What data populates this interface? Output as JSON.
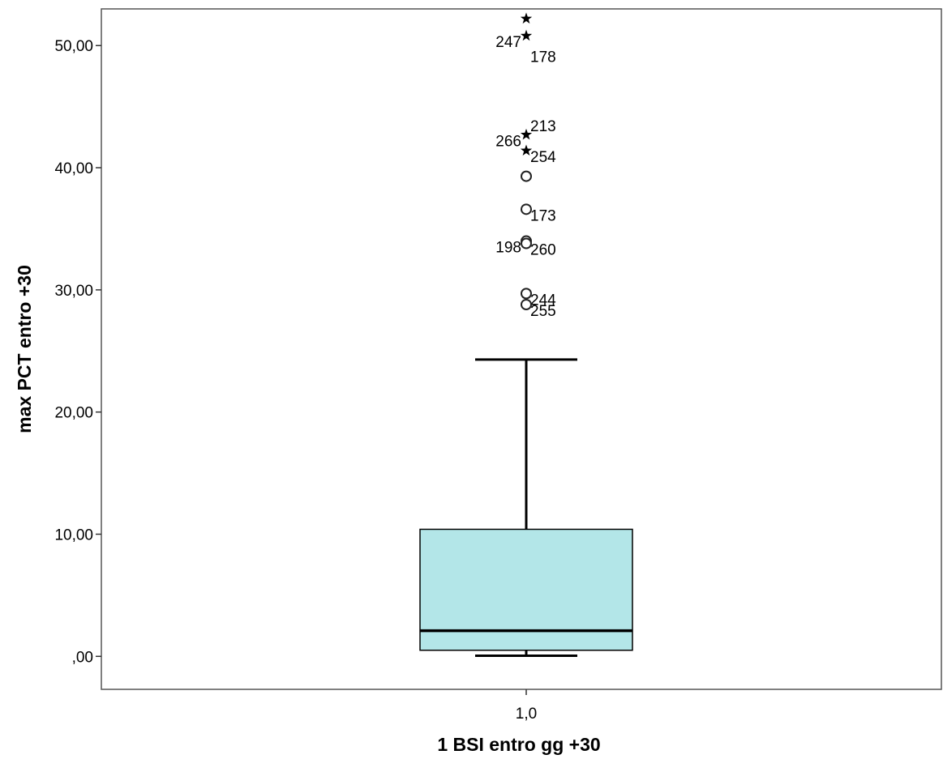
{
  "chart_data": {
    "type": "box",
    "xlabel": "1 BSI entro gg +30",
    "ylabel": "max PCT entro +30",
    "categories": [
      "1,0"
    ],
    "y_ticks": [
      {
        "value": 0,
        "label": ",00"
      },
      {
        "value": 10,
        "label": "10,00"
      },
      {
        "value": 20,
        "label": "20,00"
      },
      {
        "value": 30,
        "label": "30,00"
      },
      {
        "value": 40,
        "label": "40,00"
      },
      {
        "value": 50,
        "label": "50,00"
      }
    ],
    "ylim": [
      -2.7,
      53.0
    ],
    "grid": false,
    "box": {
      "box_color": "#b3e6e8",
      "whisker_low": 0.05,
      "q1": 0.5,
      "median": 2.1,
      "q3": 10.4,
      "whisker_high": 24.3
    },
    "outliers": [
      {
        "value": 52.2,
        "marker": "star",
        "label": "",
        "label_side": "right"
      },
      {
        "value": 50.8,
        "marker": "star",
        "label": "247",
        "label_side": "left"
      },
      {
        "value": 49.6,
        "marker": "none",
        "label": "178",
        "label_side": "right"
      },
      {
        "value": 43.9,
        "marker": "none",
        "label": "213",
        "label_side": "right"
      },
      {
        "value": 42.7,
        "marker": "star",
        "label": "266",
        "label_side": "left"
      },
      {
        "value": 41.4,
        "marker": "star",
        "label": "254",
        "label_side": "right"
      },
      {
        "value": 39.3,
        "marker": "circle",
        "label": "",
        "label_side": "right"
      },
      {
        "value": 36.6,
        "marker": "circle",
        "label": "173",
        "label_side": "right"
      },
      {
        "value": 34.0,
        "marker": "circle",
        "label": "198",
        "label_side": "left"
      },
      {
        "value": 33.8,
        "marker": "circle",
        "label": "260",
        "label_side": "right"
      },
      {
        "value": 29.7,
        "marker": "circle",
        "label": "244",
        "label_side": "right"
      },
      {
        "value": 28.8,
        "marker": "circle",
        "label": "255",
        "label_side": "right"
      }
    ]
  }
}
